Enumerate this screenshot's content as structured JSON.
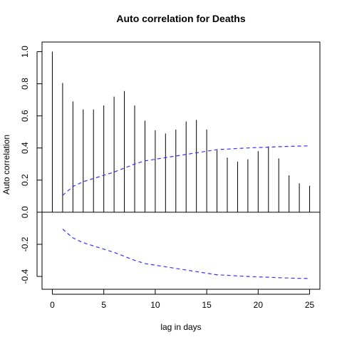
{
  "chart_data": {
    "type": "bar",
    "title": "Auto correlation for Deaths",
    "xlabel": "lag in days",
    "ylabel": "Auto correlation",
    "x_ticks": [
      0,
      5,
      10,
      15,
      20,
      25
    ],
    "y_ticks": [
      -0.4,
      -0.2,
      0.0,
      0.2,
      0.4,
      0.6,
      0.8,
      1.0
    ],
    "y_tick_labels": [
      "-0.4",
      "-0.2",
      "0.0",
      "0.2",
      "0.4",
      "0.6",
      "0.8",
      "1.0"
    ],
    "xlim": [
      -1,
      26
    ],
    "ylim": [
      -0.48,
      1.06
    ],
    "lags": [
      0,
      1,
      2,
      3,
      4,
      5,
      6,
      7,
      8,
      9,
      10,
      11,
      12,
      13,
      14,
      15,
      16,
      17,
      18,
      19,
      20,
      21,
      22,
      23,
      24,
      25
    ],
    "acf": [
      1.0,
      0.805,
      0.69,
      0.64,
      0.64,
      0.665,
      0.72,
      0.755,
      0.665,
      0.57,
      0.51,
      0.49,
      0.515,
      0.565,
      0.575,
      0.515,
      0.385,
      0.34,
      0.315,
      0.33,
      0.38,
      0.41,
      0.335,
      0.23,
      0.18,
      0.165
    ],
    "confidence_band": {
      "lags": [
        1,
        2,
        3,
        4,
        5,
        6,
        7,
        8,
        9,
        10,
        11,
        12,
        13,
        14,
        15,
        16,
        17,
        18,
        19,
        20,
        21,
        22,
        23,
        24,
        25
      ],
      "upper": [
        0.105,
        0.16,
        0.19,
        0.21,
        0.23,
        0.25,
        0.275,
        0.3,
        0.32,
        0.33,
        0.34,
        0.35,
        0.36,
        0.37,
        0.38,
        0.39,
        0.393,
        0.397,
        0.4,
        0.403,
        0.405,
        0.408,
        0.41,
        0.412,
        0.413
      ],
      "lower": [
        -0.105,
        -0.16,
        -0.19,
        -0.21,
        -0.23,
        -0.25,
        -0.275,
        -0.3,
        -0.32,
        -0.33,
        -0.34,
        -0.35,
        -0.36,
        -0.37,
        -0.38,
        -0.39,
        -0.393,
        -0.397,
        -0.4,
        -0.403,
        -0.405,
        -0.408,
        -0.41,
        -0.412,
        -0.413
      ]
    },
    "colors": {
      "bars": "#000000",
      "band": "#3333ff",
      "zero_line": "#000000",
      "frame": "#000000"
    },
    "grid": false,
    "legend": "none"
  }
}
